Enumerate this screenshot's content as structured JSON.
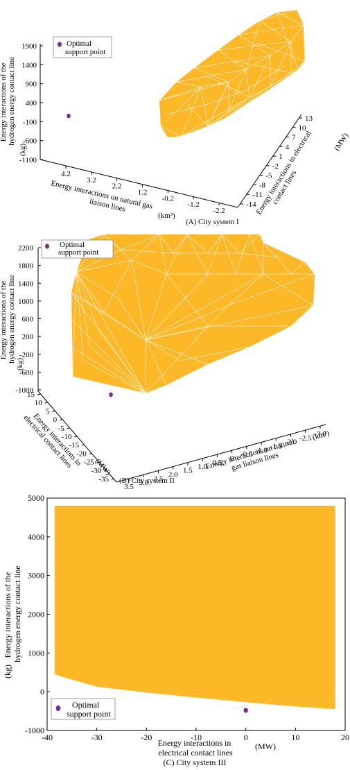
{
  "colors": {
    "region": "#FDB827",
    "point": "#7B2D8E",
    "mesh": "#FFFFFF"
  },
  "chart_data": [
    {
      "type": "3d-polyhedron",
      "caption": "(A) City system I",
      "legend_label": [
        "Optimal",
        "support point"
      ],
      "zlabel": [
        "Energy interactions of the",
        "hydrogen energy contact line",
        "(kg)"
      ],
      "xlabel": [
        "Energy interactions on natural gas",
        "liaison lines",
        "(km³)"
      ],
      "ylabel": [
        "Energy interactions in electrical",
        "contact lines",
        "(MW)"
      ],
      "z_ticks": [
        "1900",
        "1400",
        "900",
        "400",
        "-100",
        "-600",
        "-1100"
      ],
      "x_ticks": [
        "4.2",
        "3.2",
        "2.2",
        "1.2",
        "-0.2",
        "-1.2",
        "-2.2"
      ],
      "y_ticks": [
        "-14",
        "-11",
        "-8",
        "-5",
        "-2",
        "1",
        "4",
        "7",
        "10",
        "13"
      ]
    },
    {
      "type": "3d-polyhedron",
      "caption": "(B) City system II",
      "legend_label": [
        "Optimal",
        "support point"
      ],
      "zlabel": [
        "Energy interactions of the",
        "hydrogen energy contact line",
        "(kg)"
      ],
      "xlabel": [
        "Energy interactions on natural",
        "gas liaison lines",
        "(km³)"
      ],
      "ylabel": [
        "Energy interactions in",
        "electrical contact lines",
        "(MW)"
      ],
      "z_ticks": [
        "2200",
        "1800",
        "1400",
        "1000",
        "600",
        "200",
        "-200",
        "-600",
        "-1000"
      ],
      "y_ticks": [
        "15",
        "10",
        "5",
        "0",
        "-5",
        "-10",
        "-15",
        "-20",
        "-25",
        "-30",
        "-35"
      ],
      "x_ticks": [
        "3.5",
        "3.0",
        "2.5",
        "2.0",
        "1.5",
        "1.0",
        "0.5",
        "0",
        "-0.5",
        "-1.0",
        "-1.5",
        "-2.0",
        "-2.5",
        "-3.0"
      ]
    },
    {
      "type": "area",
      "caption": "(C) City system III",
      "legend_label": [
        "Optimal",
        "support point"
      ],
      "xlabel": [
        "Energy interactions in",
        "electrical contact lines"
      ],
      "xunit": "(MW)",
      "ylabel": [
        "Energy interactions of the",
        "hydrogen energy contact line"
      ],
      "yunit": "(kg)",
      "xlim": [
        -40,
        20
      ],
      "ylim": [
        -1000,
        5000
      ],
      "x_ticks": [
        -40,
        -30,
        -20,
        -10,
        0,
        10,
        20
      ],
      "y_ticks": [
        -1000,
        0,
        1000,
        2000,
        3000,
        4000,
        5000
      ],
      "region": {
        "upper": [
          [
            -38.5,
            4800
          ],
          [
            18,
            4800
          ]
        ],
        "lower": [
          [
            -38.5,
            450
          ],
          [
            -36,
            350
          ],
          [
            -30,
            130
          ],
          [
            -20,
            -20
          ],
          [
            -10,
            -150
          ],
          [
            0,
            -270
          ],
          [
            10,
            -380
          ],
          [
            18,
            -450
          ]
        ]
      },
      "optimal_point": [
        0,
        -480
      ]
    }
  ]
}
